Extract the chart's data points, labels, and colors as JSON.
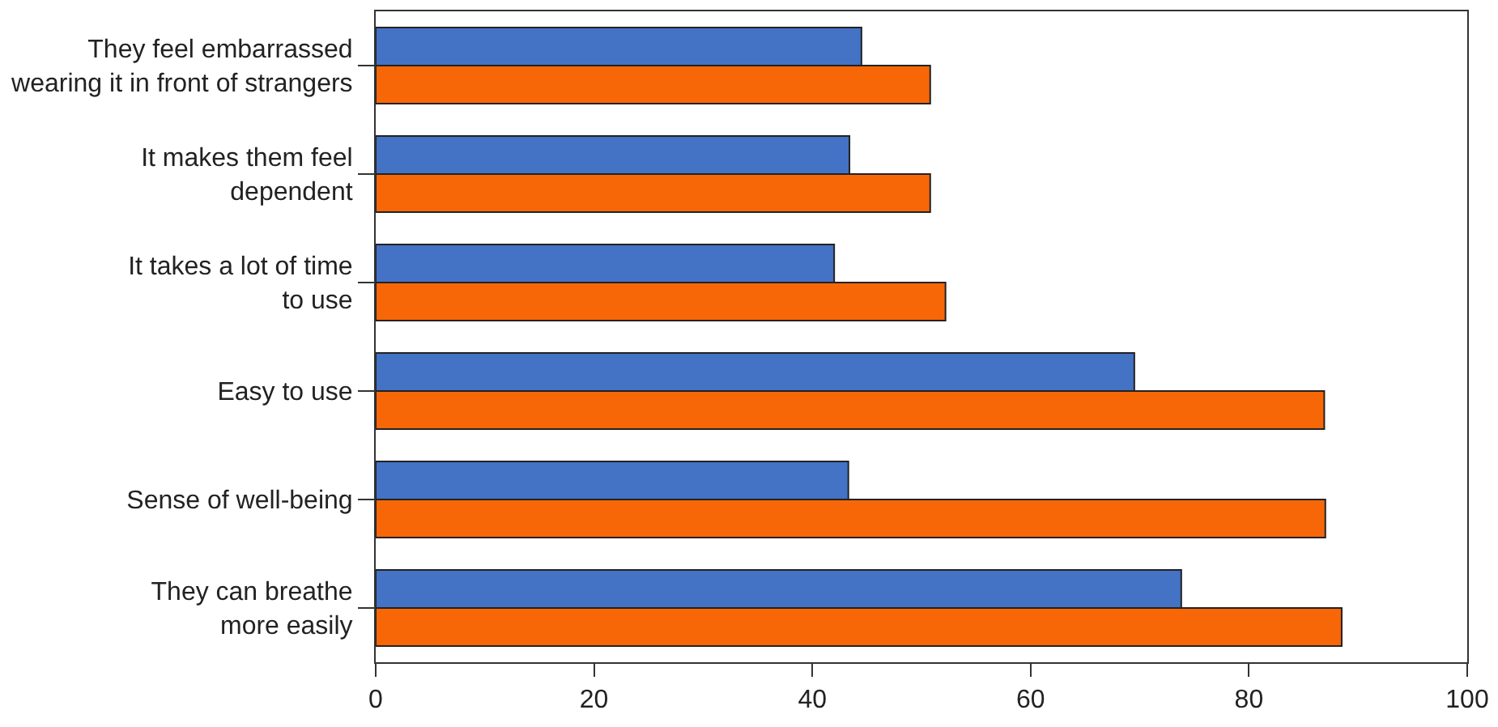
{
  "chart_data": {
    "type": "bar",
    "orientation": "horizontal",
    "categories": [
      "They feel embarrassed\nwearing it in front of strangers",
      "It makes them feel\ndependent",
      "It takes a lot of time\nto use",
      "Easy to use",
      "Sense of well-being",
      "They can breathe\nmore easily"
    ],
    "series": [
      {
        "color": "#4472c4",
        "values": [
          44.5,
          43.4,
          42.0,
          69.5,
          43.3,
          73.8
        ]
      },
      {
        "color": "#f76707",
        "values": [
          50.8,
          50.8,
          52.2,
          86.9,
          87.0,
          88.5
        ]
      }
    ],
    "xlim": [
      0,
      100
    ],
    "xticks": [
      0,
      20,
      40,
      60,
      80,
      100
    ]
  }
}
